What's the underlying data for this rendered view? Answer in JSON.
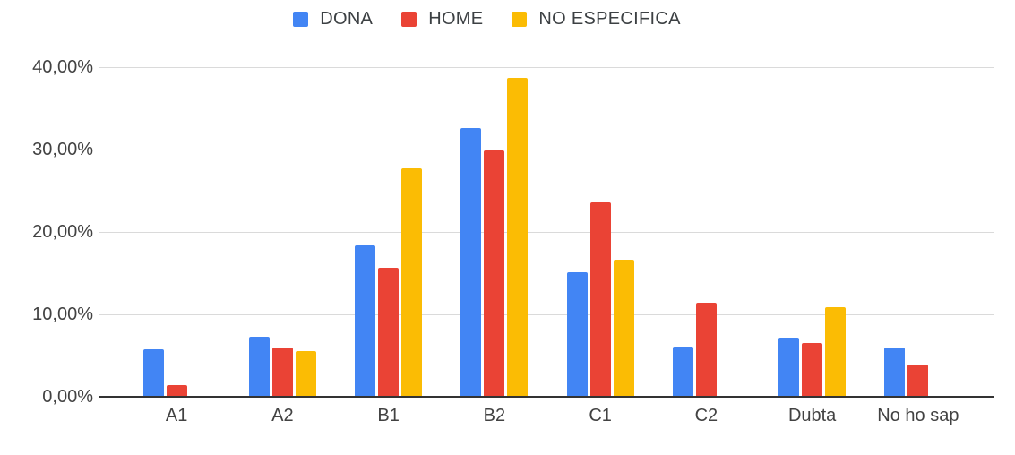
{
  "chart_data": {
    "type": "bar",
    "title": "",
    "xlabel": "",
    "ylabel": "",
    "categories": [
      "A1",
      "A2",
      "B1",
      "B2",
      "C1",
      "C2",
      "Dubta",
      "No ho sap"
    ],
    "series": [
      {
        "name": "DONA",
        "color": "#4285F4",
        "values": [
          5.8,
          7.3,
          18.4,
          32.6,
          15.1,
          6.1,
          7.2,
          6.0
        ]
      },
      {
        "name": "HOME",
        "color": "#EA4335",
        "values": [
          1.4,
          6.0,
          15.7,
          29.9,
          23.6,
          11.4,
          6.5,
          3.9
        ]
      },
      {
        "name": "NO ESPECIFICA",
        "color": "#FBBC04",
        "values": [
          0,
          5.5,
          27.7,
          38.7,
          16.6,
          0,
          10.9,
          0
        ]
      }
    ],
    "ylim": [
      0,
      40
    ],
    "yticks": [
      {
        "value": 0,
        "label": "0,00%"
      },
      {
        "value": 10,
        "label": "10,00%"
      },
      {
        "value": 20,
        "label": "20,00%"
      },
      {
        "value": 30,
        "label": "30,00%"
      },
      {
        "value": 40,
        "label": "40,00%"
      }
    ],
    "grid": true,
    "legend_position": "top"
  },
  "style": {
    "gridline_color": "#dadada",
    "baseline_color": "#333333",
    "tick_label_color": "#424242",
    "legend_label_color": "#3c4043",
    "background": "#ffffff"
  }
}
